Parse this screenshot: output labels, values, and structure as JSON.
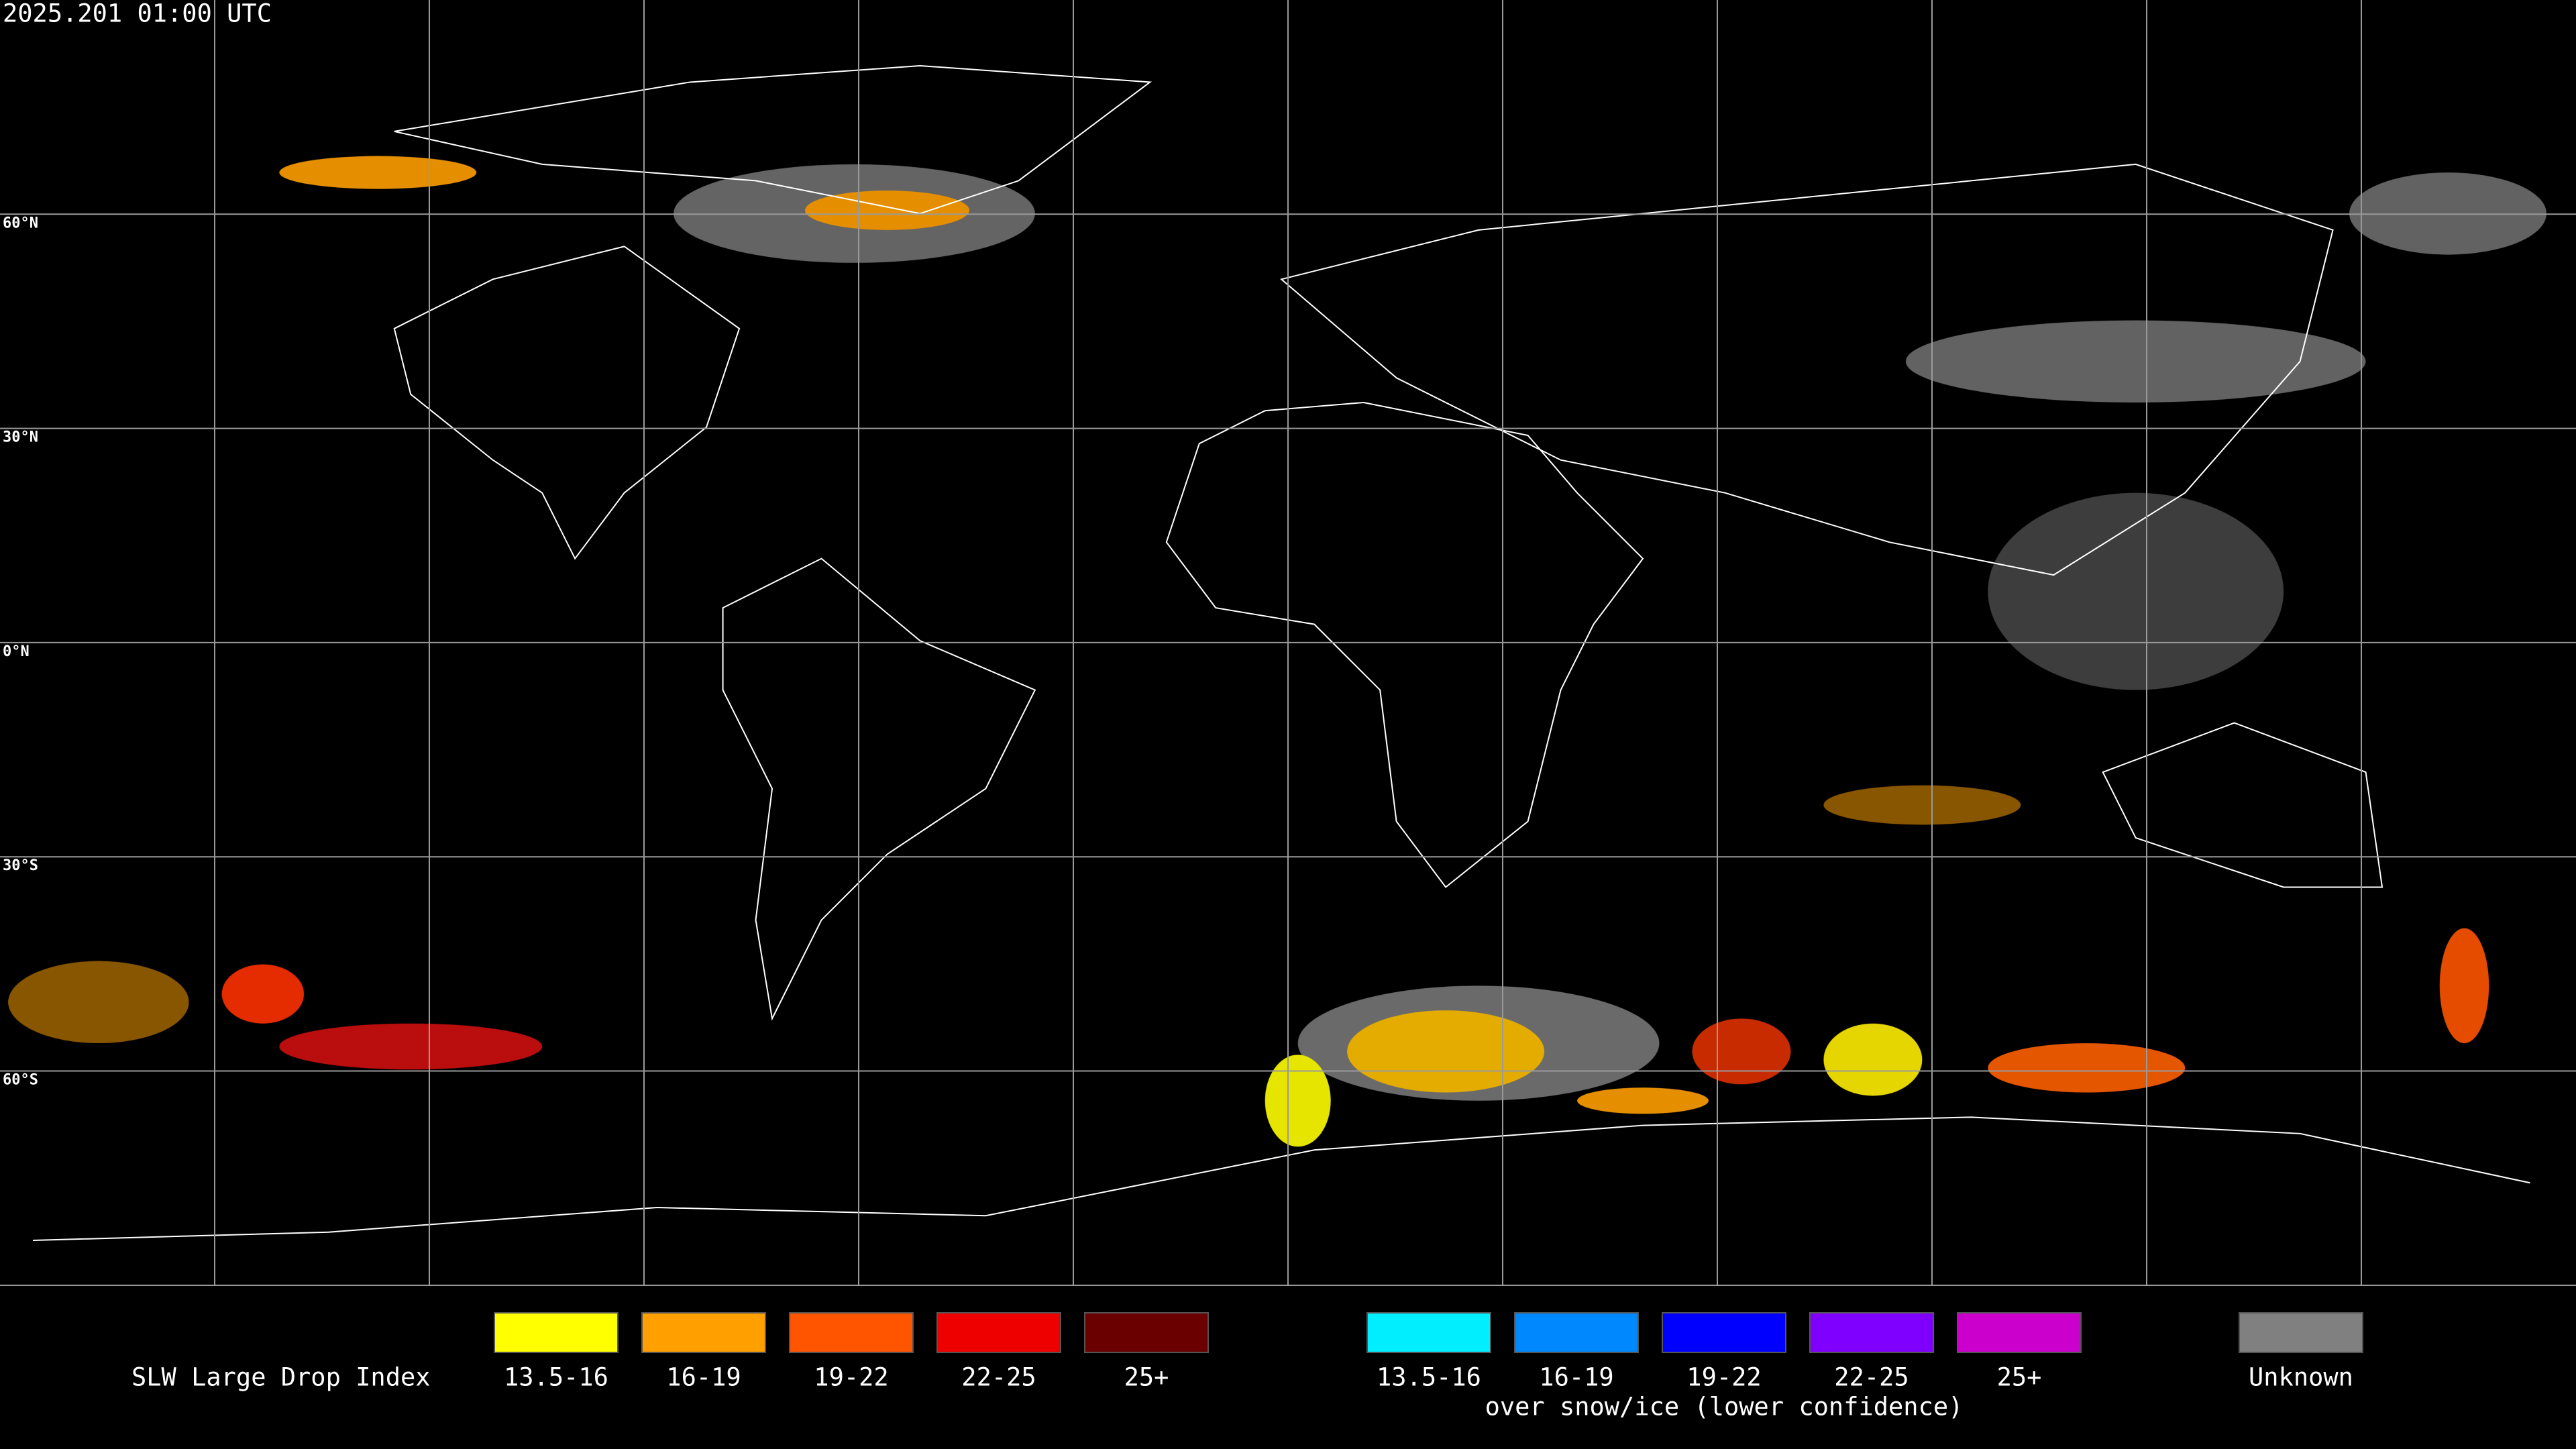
{
  "timestamp": "2025.201 01:00 UTC",
  "latitude_labels": [
    "60°N",
    "30°N",
    "0°N",
    "30°S",
    "60°S"
  ],
  "legend": {
    "title": "SLW Large Drop Index",
    "groups": [
      {
        "items": [
          {
            "label": "13.5-16",
            "color": "#ffff00"
          },
          {
            "label": "16-19",
            "color": "#ffa000"
          },
          {
            "label": "19-22",
            "color": "#ff5500"
          },
          {
            "label": "22-25",
            "color": "#ee0000"
          },
          {
            "label": "25+",
            "color": "#6b0000"
          }
        ]
      },
      {
        "items": [
          {
            "label": "13.5-16",
            "color": "#00eeff"
          },
          {
            "label": "16-19",
            "color": "#0088ff"
          },
          {
            "label": "19-22",
            "color": "#0000ff"
          },
          {
            "label": "22-25",
            "color": "#8000ff"
          },
          {
            "label": "25+",
            "color": "#cc00cc"
          }
        ],
        "caption": "over snow/ice (lower confidence)"
      },
      {
        "items": [
          {
            "label": "Unknown",
            "color": "#808080"
          }
        ]
      }
    ]
  }
}
